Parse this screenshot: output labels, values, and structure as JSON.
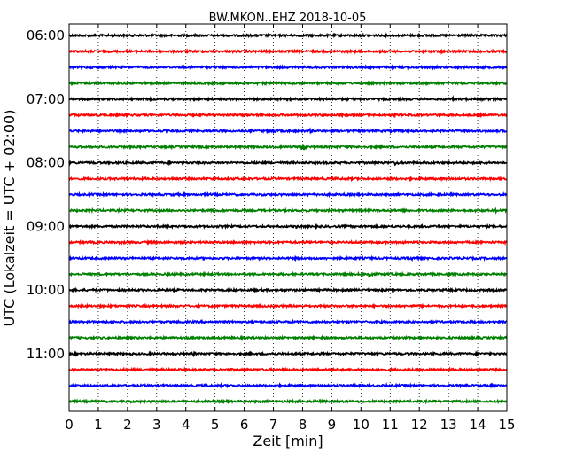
{
  "chart_data": {
    "type": "line",
    "title": "BW.MKON..EHZ 2018-10-05",
    "xlabel": "Zeit  [min]",
    "ylabel": "UTC (Lokalzeit = UTC + 02:00)",
    "xlim": [
      0,
      15
    ],
    "x_ticks": [
      "0",
      "1",
      "2",
      "3",
      "4",
      "5",
      "6",
      "7",
      "8",
      "9",
      "10",
      "11",
      "12",
      "13",
      "14",
      "15"
    ],
    "grid": "vertical-dotted",
    "trace_interval_minutes": 15,
    "hour_labels": [
      "06:00",
      "07:00",
      "08:00",
      "09:00",
      "10:00",
      "11:00"
    ],
    "trace_colors": [
      "#000000",
      "#ff0000",
      "#0000ff",
      "#008000"
    ],
    "series": [
      {
        "start": "06:00",
        "events": []
      },
      {
        "start": "06:15",
        "events": [
          [
            12.8,
            1.5
          ]
        ]
      },
      {
        "start": "06:30",
        "events": []
      },
      {
        "start": "06:45",
        "events": []
      },
      {
        "start": "07:00",
        "events": [
          [
            13.2,
            2
          ],
          [
            14.3,
            1.5
          ]
        ]
      },
      {
        "start": "07:15",
        "events": []
      },
      {
        "start": "07:30",
        "events": [
          [
            7.0,
            3
          ],
          [
            8.3,
            2
          ]
        ]
      },
      {
        "start": "07:45",
        "events": [
          [
            8.0,
            5
          ]
        ]
      },
      {
        "start": "08:00",
        "events": [
          [
            11.2,
            3
          ]
        ]
      },
      {
        "start": "08:15",
        "events": []
      },
      {
        "start": "08:30",
        "events": [
          [
            8.2,
            2
          ],
          [
            12.7,
            1.5
          ]
        ]
      },
      {
        "start": "08:45",
        "events": [
          [
            0.8,
            1.5
          ],
          [
            14.6,
            2.5
          ]
        ]
      },
      {
        "start": "09:00",
        "events": [
          [
            4.0,
            2
          ],
          [
            7.8,
            2
          ]
        ]
      },
      {
        "start": "09:15",
        "events": [
          [
            10.8,
            1.5
          ]
        ]
      },
      {
        "start": "09:30",
        "events": [
          [
            8.8,
            1.5
          ],
          [
            11.8,
            3
          ]
        ]
      },
      {
        "start": "09:45",
        "events": [
          [
            10.3,
            6
          ]
        ]
      },
      {
        "start": "10:00",
        "events": []
      },
      {
        "start": "10:15",
        "events": [
          [
            14.2,
            1.5
          ]
        ]
      },
      {
        "start": "10:30",
        "events": []
      },
      {
        "start": "10:45",
        "events": []
      },
      {
        "start": "11:00",
        "events": [
          [
            4.3,
            2
          ],
          [
            7.0,
            2
          ],
          [
            2.6,
            1.2
          ]
        ]
      },
      {
        "start": "11:15",
        "events": []
      },
      {
        "start": "11:30",
        "events": []
      },
      {
        "start": "11:45",
        "events": [
          [
            5.0,
            1.2
          ]
        ]
      }
    ]
  }
}
